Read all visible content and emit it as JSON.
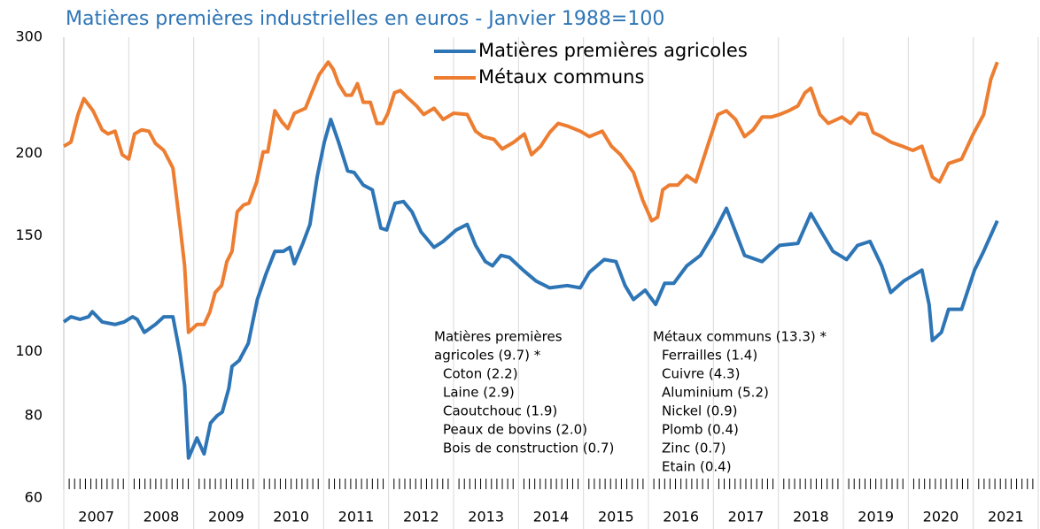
{
  "chart_data": {
    "type": "line",
    "title": "Matières premières industrielles en euros - Janvier 1988=100",
    "log_scale": true,
    "grid": "x",
    "legend": "top",
    "xlim": [
      2007,
      2022
    ],
    "xticks": [
      {
        "value": 2007,
        "label": "2007"
      },
      {
        "value": 2008,
        "label": "2008"
      },
      {
        "value": 2009,
        "label": "2009"
      },
      {
        "value": 2010,
        "label": "2010"
      },
      {
        "value": 2011,
        "label": "2011"
      },
      {
        "value": 2012,
        "label": "2012"
      },
      {
        "value": 2013,
        "label": "2013"
      },
      {
        "value": 2014,
        "label": "2014"
      },
      {
        "value": 2015,
        "label": "2015"
      },
      {
        "value": 2016,
        "label": "2016"
      },
      {
        "value": 2017,
        "label": "2017"
      },
      {
        "value": 2018,
        "label": "2018"
      },
      {
        "value": 2019,
        "label": "2019"
      },
      {
        "value": 2020,
        "label": "2020"
      },
      {
        "value": 2021,
        "label": "2021"
      }
    ],
    "ylim": [
      60,
      300
    ],
    "yticks": [
      60,
      80,
      100,
      150,
      200,
      300
    ],
    "series": [
      {
        "name": "Matières premières agricoles",
        "color": "#2e75b6",
        "x": [
          2007.0,
          2007.11,
          2007.25,
          2007.38,
          2007.44,
          2007.59,
          2007.79,
          2007.93,
          2008.06,
          2008.13,
          2008.24,
          2008.41,
          2008.54,
          2008.68,
          2008.79,
          2008.86,
          2008.92,
          2009.05,
          2009.16,
          2009.26,
          2009.36,
          2009.44,
          2009.54,
          2009.59,
          2009.7,
          2009.84,
          2009.98,
          2010.11,
          2010.25,
          2010.38,
          2010.48,
          2010.55,
          2010.68,
          2010.79,
          2010.9,
          2011.01,
          2011.11,
          2011.23,
          2011.37,
          2011.47,
          2011.61,
          2011.75,
          2011.88,
          2011.97,
          2012.1,
          2012.23,
          2012.36,
          2012.5,
          2012.7,
          2012.84,
          2013.04,
          2013.21,
          2013.34,
          2013.49,
          2013.6,
          2013.73,
          2013.86,
          2014.07,
          2014.27,
          2014.48,
          2014.75,
          2014.95,
          2015.09,
          2015.32,
          2015.5,
          2015.64,
          2015.77,
          2015.95,
          2016.11,
          2016.25,
          2016.39,
          2016.59,
          2016.8,
          2017.0,
          2017.2,
          2017.34,
          2017.48,
          2017.75,
          2018.02,
          2018.3,
          2018.5,
          2018.68,
          2018.84,
          2019.05,
          2019.22,
          2019.41,
          2019.59,
          2019.73,
          2019.93,
          2020.21,
          2020.32,
          2020.37,
          2020.51,
          2020.62,
          2020.82,
          2021.02,
          2021.16,
          2021.37
        ],
        "values": [
          111,
          113,
          112,
          113,
          115,
          111,
          110,
          111,
          113,
          112,
          107,
          110,
          113,
          113,
          99,
          89,
          69,
          74,
          70,
          78,
          80,
          81,
          88,
          95,
          97,
          103,
          120,
          131,
          142,
          142,
          144,
          136,
          146,
          156,
          184,
          208,
          225,
          208,
          188,
          187,
          179,
          176,
          154,
          153,
          168,
          169,
          163,
          152,
          144,
          147,
          153,
          156,
          145,
          137,
          135,
          140,
          139,
          133,
          128,
          125,
          126,
          125,
          132,
          138,
          137,
          126,
          120,
          124,
          118,
          127,
          127,
          135,
          140,
          151,
          165,
          152,
          140,
          137,
          145,
          146,
          162,
          151,
          142,
          138,
          145,
          147,
          135,
          123,
          128,
          133,
          118,
          104,
          107,
          116,
          116,
          133,
          142,
          158
        ]
      },
      {
        "name": "Métaux communs",
        "color": "#ed7d31",
        "x": [
          2007.0,
          2007.11,
          2007.22,
          2007.31,
          2007.45,
          2007.59,
          2007.68,
          2007.79,
          2007.9,
          2008.0,
          2008.09,
          2008.2,
          2008.31,
          2008.41,
          2008.54,
          2008.68,
          2008.79,
          2008.86,
          2008.92,
          2009.05,
          2009.16,
          2009.25,
          2009.33,
          2009.43,
          2009.51,
          2009.59,
          2009.67,
          2009.77,
          2009.85,
          2009.97,
          2010.07,
          2010.14,
          2010.25,
          2010.36,
          2010.45,
          2010.55,
          2010.72,
          2010.83,
          2010.93,
          2011.07,
          2011.15,
          2011.23,
          2011.34,
          2011.43,
          2011.52,
          2011.61,
          2011.72,
          2011.82,
          2011.91,
          2011.99,
          2012.09,
          2012.18,
          2012.29,
          2012.43,
          2012.54,
          2012.7,
          2012.84,
          2013.0,
          2013.21,
          2013.34,
          2013.45,
          2013.62,
          2013.75,
          2013.93,
          2014.09,
          2014.2,
          2014.34,
          2014.48,
          2014.61,
          2014.75,
          2014.95,
          2015.09,
          2015.29,
          2015.43,
          2015.57,
          2015.77,
          2015.91,
          2016.05,
          2016.14,
          2016.22,
          2016.32,
          2016.45,
          2016.59,
          2016.73,
          2016.8,
          2016.93,
          2017.07,
          2017.2,
          2017.34,
          2017.48,
          2017.61,
          2017.75,
          2017.89,
          2018.02,
          2018.16,
          2018.3,
          2018.41,
          2018.5,
          2018.64,
          2018.77,
          2018.98,
          2019.11,
          2019.24,
          2019.36,
          2019.46,
          2019.59,
          2019.73,
          2019.91,
          2020.07,
          2020.21,
          2020.37,
          2020.48,
          2020.62,
          2020.82,
          2021.0,
          2021.16,
          2021.27,
          2021.37
        ],
        "values": [
          205,
          208,
          229,
          242,
          232,
          217,
          214,
          216,
          199,
          196,
          214,
          217,
          216,
          207,
          202,
          190,
          155,
          135,
          107,
          110,
          110,
          115,
          123,
          126,
          137,
          142,
          163,
          167,
          168,
          181,
          201,
          201,
          232,
          223,
          218,
          230,
          234,
          249,
          263,
          275,
          268,
          255,
          245,
          245,
          255,
          239,
          239,
          222,
          222,
          230,
          247,
          249,
          243,
          236,
          229,
          234,
          225,
          230,
          229,
          216,
          212,
          210,
          203,
          208,
          214,
          199,
          205,
          215,
          222,
          220,
          216,
          212,
          216,
          205,
          199,
          187,
          170,
          158,
          160,
          176,
          179,
          179,
          185,
          181,
          190,
          208,
          229,
          232,
          225,
          212,
          217,
          227,
          227,
          229,
          232,
          236,
          247,
          251,
          229,
          222,
          227,
          222,
          230,
          229,
          215,
          212,
          208,
          205,
          202,
          205,
          184,
          181,
          193,
          196,
          214,
          229,
          259,
          275
        ]
      }
    ],
    "annotations": {
      "left": [
        "Matières premières",
        "agricoles (9.7) *",
        "Coton (2.2)",
        "Laine (2.9)",
        "Caoutchouc (1.9)",
        "Peaux de bovins (2.0)",
        "Bois de construction (0.7)"
      ],
      "right": [
        "Métaux communs (13.3) *",
        "Ferrailles (1.4)",
        "Cuivre (4.3)",
        "Aluminium (5.2)",
        "Nickel (0.9)",
        "Plomb (0.4)",
        "Zinc (0.7)",
        "Etain (0.4)"
      ]
    }
  }
}
